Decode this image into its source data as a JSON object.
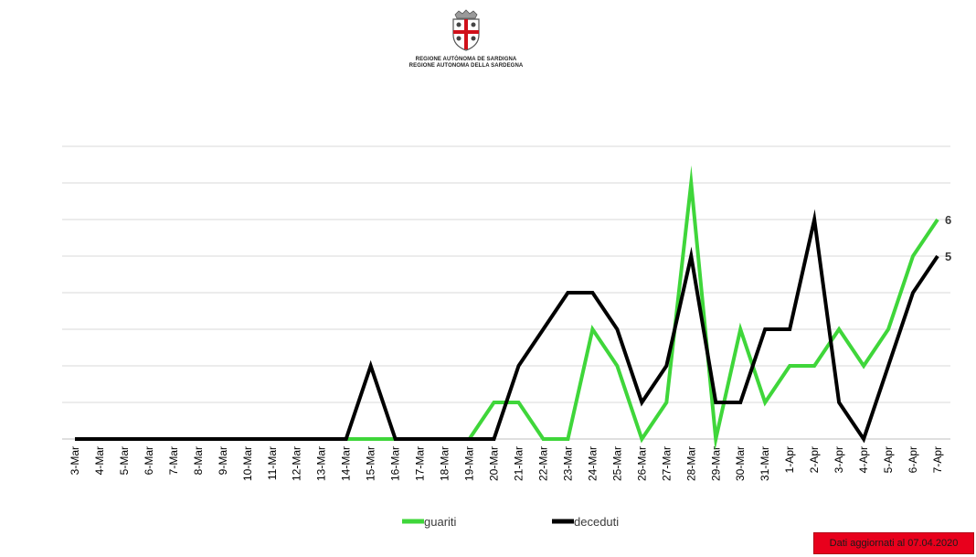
{
  "header": {
    "logo_line1": "REGIONE AUTÒNOMA DE SARDIGNA",
    "logo_line2": "REGIONE AUTONOMA DELLA SARDEGNA"
  },
  "footer": {
    "note": "Dati aggiornati al 07.04.2020",
    "note_color": "#e8001c"
  },
  "chart_data": {
    "type": "line",
    "title": "",
    "xlabel": "",
    "ylabel": "",
    "ylim": [
      0,
      8
    ],
    "grid": true,
    "legend_position": "bottom",
    "categories": [
      "3-Mar",
      "4-Mar",
      "5-Mar",
      "6-Mar",
      "7-Mar",
      "8-Mar",
      "9-Mar",
      "10-Mar",
      "11-Mar",
      "12-Mar",
      "13-Mar",
      "14-Mar",
      "15-Mar",
      "16-Mar",
      "17-Mar",
      "18-Mar",
      "19-Mar",
      "20-Mar",
      "21-Mar",
      "22-Mar",
      "23-Mar",
      "24-Mar",
      "25-Mar",
      "26-Mar",
      "27-Mar",
      "28-Mar",
      "29-Mar",
      "30-Mar",
      "31-Mar",
      "1-Apr",
      "2-Apr",
      "3-Apr",
      "4-Apr",
      "5-Apr",
      "6-Apr",
      "7-Apr"
    ],
    "series": [
      {
        "name": "guariti",
        "color": "#3fd63a",
        "values": [
          0,
          0,
          0,
          0,
          0,
          0,
          0,
          0,
          0,
          0,
          0,
          0,
          0,
          0,
          0,
          0,
          0,
          1,
          1,
          0,
          0,
          3,
          2,
          0,
          1,
          7,
          0,
          3,
          1,
          2,
          2,
          3,
          2,
          3,
          5,
          6
        ],
        "end_label": "6"
      },
      {
        "name": "deceduti",
        "color": "#000000",
        "values": [
          0,
          0,
          0,
          0,
          0,
          0,
          0,
          0,
          0,
          0,
          0,
          0,
          2,
          0,
          0,
          0,
          0,
          0,
          2,
          3,
          4,
          4,
          3,
          1,
          2,
          5,
          1,
          1,
          3,
          3,
          6,
          1,
          0,
          2,
          4,
          5
        ],
        "end_label": "5"
      }
    ]
  }
}
